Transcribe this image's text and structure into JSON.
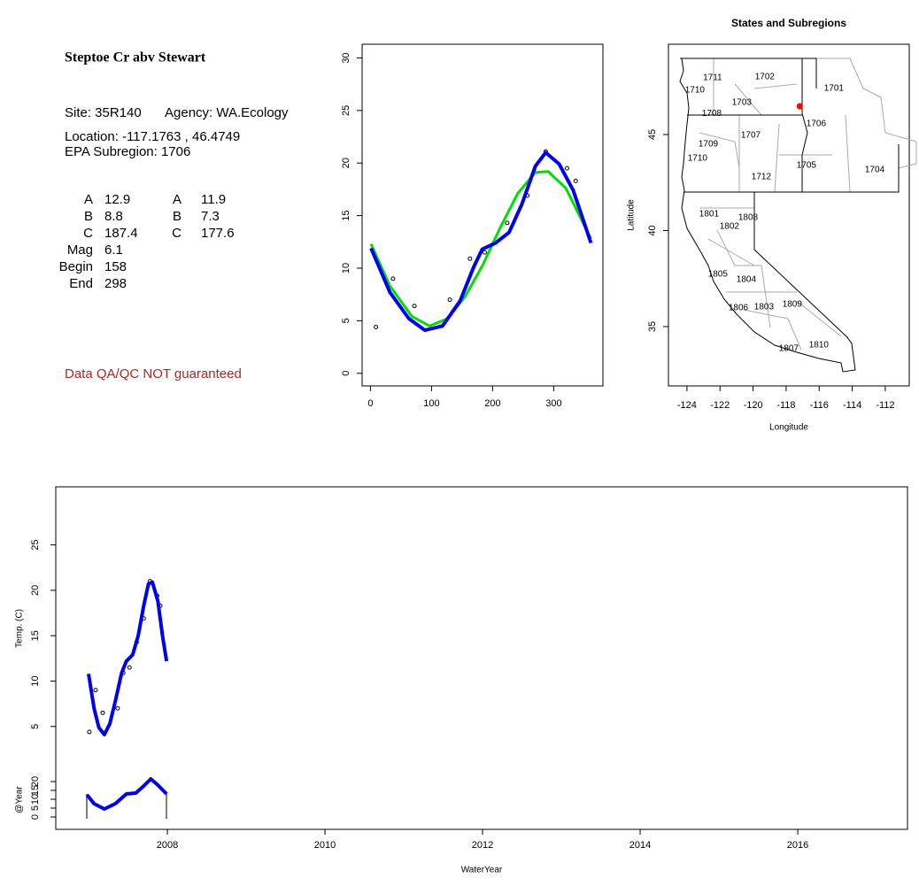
{
  "info": {
    "title": "Steptoe Cr abv Stewart",
    "site": "Site: 35R140",
    "agency": "Agency: WA.Ecology",
    "location": "Location: -117.1763 , 46.4749",
    "subregion": "EPA Subregion: 1706",
    "params": [
      [
        "A",
        12.9,
        "A",
        11.9
      ],
      [
        "B",
        8.8,
        "B",
        7.3
      ],
      [
        "C",
        187.4,
        "C",
        177.6
      ],
      [
        "Mag",
        6.1
      ],
      [
        "Begin",
        158
      ],
      [
        "End",
        298
      ]
    ],
    "note": "Data QA/QC NOT guaranteed"
  },
  "chart_data": [
    {
      "type": "line",
      "xlim": [
        -13.6,
        380.6
      ],
      "ylim": [
        -1.2,
        31.3
      ],
      "xticks": [
        0,
        100,
        200,
        300
      ],
      "yticks": [
        0,
        5,
        10,
        15,
        20,
        25,
        30
      ],
      "series": [
        {
          "marker": "circle",
          "color": "#000000",
          "x": [
            9,
            37,
            72,
            130,
            163,
            187,
            224,
            257,
            287,
            322,
            336
          ],
          "values": [
            4.4,
            9.0,
            6.4,
            7.0,
            10.9,
            11.5,
            14.3,
            16.9,
            21.1,
            19.5,
            18.3
          ]
        },
        {
          "color": "#00e000",
          "line_width": 3,
          "x": [
            1,
            32,
            68,
            97,
            126,
            155,
            183,
            212,
            241,
            270,
            291,
            320,
            361
          ],
          "values": [
            12.3,
            8.3,
            5.4,
            4.5,
            5.2,
            7.3,
            10.2,
            13.8,
            17.1,
            19.1,
            19.2,
            17.6,
            12.8
          ]
        },
        {
          "color": "#0000ee",
          "line_width": 4,
          "x": [
            1,
            32,
            63,
            89,
            118,
            147,
            169,
            183,
            205,
            227,
            248,
            270,
            287,
            309,
            332,
            361
          ],
          "values": [
            11.9,
            7.7,
            5.2,
            4.1,
            4.5,
            6.9,
            10.1,
            11.8,
            12.4,
            13.4,
            16.1,
            19.7,
            21.0,
            19.9,
            17.4,
            12.4
          ]
        }
      ]
    },
    {
      "type": "map",
      "title": "States and Subregions",
      "xlabel": "Longitude",
      "ylabel": "Latitude",
      "xlim": [
        -125.12,
        -110.55
      ],
      "ylim": [
        31.91,
        49.7
      ],
      "xticks": [
        -124,
        -122,
        -120,
        -118,
        -116,
        -114,
        -112
      ],
      "yticks": [
        35,
        40,
        45
      ],
      "regions": [
        {
          "label": "1702",
          "x": -119.29,
          "y": 48.0
        },
        {
          "label": "1711",
          "x": -122.45,
          "y": 47.95
        },
        {
          "label": "1710",
          "x": -123.52,
          "y": 47.3
        },
        {
          "label": "1701",
          "x": -115.11,
          "y": 47.4
        },
        {
          "label": "1703",
          "x": -120.68,
          "y": 46.66
        },
        {
          "label": "1708",
          "x": -122.5,
          "y": 46.1
        },
        {
          "label": "1706",
          "x": -116.18,
          "y": 45.55
        },
        {
          "label": "1707",
          "x": -120.14,
          "y": 44.95
        },
        {
          "label": "1709",
          "x": -122.71,
          "y": 44.49
        },
        {
          "label": "1710",
          "x": -123.36,
          "y": 43.76
        },
        {
          "label": "1705",
          "x": -116.77,
          "y": 43.39
        },
        {
          "label": "1704",
          "x": -112.64,
          "y": 43.16
        },
        {
          "label": "1712",
          "x": -119.5,
          "y": 42.79
        },
        {
          "label": "1801",
          "x": -122.66,
          "y": 40.85
        },
        {
          "label": "1808",
          "x": -120.3,
          "y": 40.67
        },
        {
          "label": "1802",
          "x": -121.43,
          "y": 40.21
        },
        {
          "label": "1805",
          "x": -122.13,
          "y": 37.72
        },
        {
          "label": "1804",
          "x": -120.41,
          "y": 37.44
        },
        {
          "label": "1806",
          "x": -120.89,
          "y": 35.97
        },
        {
          "label": "1803",
          "x": -119.34,
          "y": 36.01
        },
        {
          "label": "1809",
          "x": -117.63,
          "y": 36.15
        },
        {
          "label": "1807",
          "x": -117.84,
          "y": 33.85
        },
        {
          "label": "1810",
          "x": -116.02,
          "y": 34.03
        }
      ],
      "site": {
        "x": -117.1763,
        "y": 46.4749,
        "color": "#ff0000"
      }
    },
    {
      "type": "line",
      "ylabel": "Temp. (C)",
      "xlim": [
        2006.584,
        2017.393
      ],
      "ylim": [
        0.2,
        31.4
      ],
      "yticks": [
        5,
        10,
        15,
        20,
        25
      ],
      "series": [
        {
          "marker": "circle",
          "color": "#000000",
          "x": [
            2007.01,
            2007.09,
            2007.18,
            2007.37,
            2007.44,
            2007.52,
            2007.61,
            2007.7,
            2007.78,
            2007.87,
            2007.91
          ],
          "values": [
            4.4,
            9.0,
            6.5,
            7.0,
            10.9,
            11.5,
            14.3,
            16.9,
            21.0,
            19.4,
            18.3
          ]
        },
        {
          "color": "#0000ee",
          "line_width": 4,
          "x": [
            2007.0,
            2007.07,
            2007.13,
            2007.2,
            2007.27,
            2007.34,
            2007.42,
            2007.48,
            2007.56,
            2007.63,
            2007.7,
            2007.76,
            2007.81,
            2007.88,
            2007.94,
            2007.99
          ],
          "values": [
            10.8,
            7.0,
            4.9,
            4.1,
            5.3,
            7.8,
            10.9,
            12.2,
            12.9,
            15.0,
            18.3,
            20.7,
            20.9,
            18.8,
            14.9,
            12.2
          ]
        }
      ]
    },
    {
      "type": "line",
      "ylabel": "@Year",
      "xlabel": "WaterYear",
      "xlim": [
        2006.584,
        2017.393
      ],
      "ylim": [
        -7,
        26.5
      ],
      "xticks": [
        2008,
        2010,
        2012,
        2014,
        2016
      ],
      "yticks": [
        0,
        5,
        10,
        15,
        20
      ],
      "series": [
        {
          "color": "#0000ee",
          "line_width": 4,
          "x": [
            2006.98,
            2007.07,
            2007.2,
            2007.34,
            2007.48,
            2007.6,
            2007.7,
            2007.79,
            2007.88,
            2007.99
          ],
          "values": [
            12.5,
            7.5,
            4.5,
            7.5,
            13.0,
            13.5,
            17.5,
            21.5,
            18.0,
            13.0
          ]
        }
      ]
    }
  ]
}
